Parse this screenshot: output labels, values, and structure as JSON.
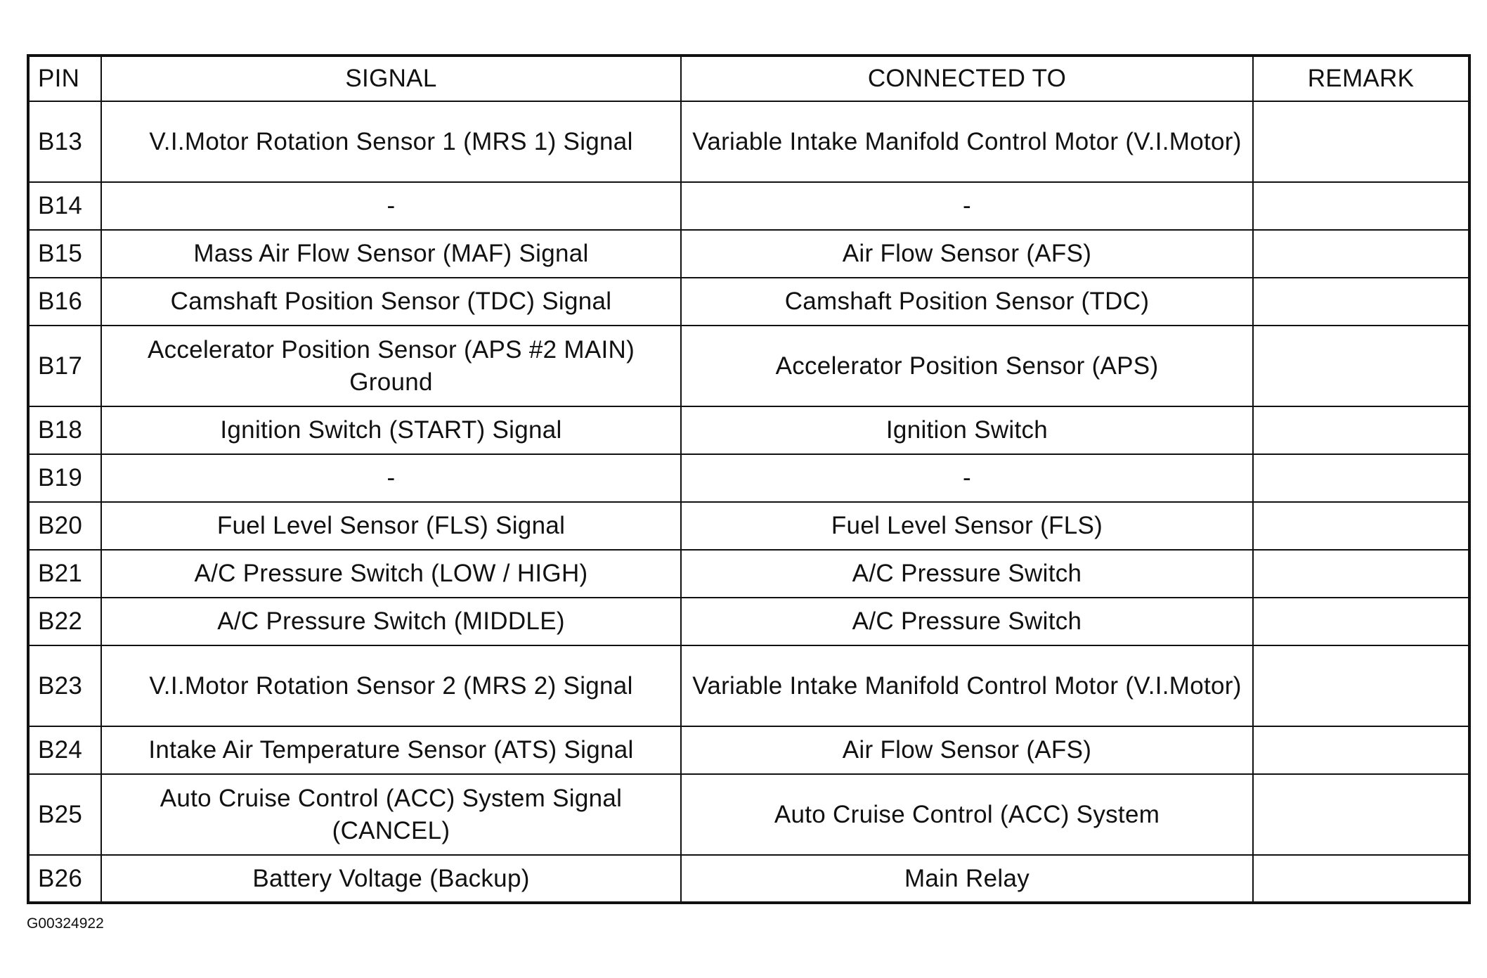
{
  "table": {
    "headers": [
      "PIN",
      "SIGNAL",
      "CONNECTED TO",
      "REMARK"
    ],
    "rows": [
      {
        "pin": "B13",
        "signal": "V.I.Motor Rotation Sensor 1 (MRS 1) Signal",
        "connected_to": "Variable Intake Manifold Control Motor (V.I.Motor)",
        "remark": "",
        "tall": true
      },
      {
        "pin": "B14",
        "signal": "-",
        "connected_to": "-",
        "remark": "",
        "tall": false
      },
      {
        "pin": "B15",
        "signal": "Mass Air Flow Sensor (MAF) Signal",
        "connected_to": "Air Flow Sensor (AFS)",
        "remark": "",
        "tall": false
      },
      {
        "pin": "B16",
        "signal": "Camshaft Position Sensor (TDC) Signal",
        "connected_to": "Camshaft Position Sensor (TDC)",
        "remark": "",
        "tall": false
      },
      {
        "pin": "B17",
        "signal": "Accelerator Position Sensor (APS #2 MAIN) Ground",
        "connected_to": "Accelerator Position Sensor (APS)",
        "remark": "",
        "tall": true
      },
      {
        "pin": "B18",
        "signal": "Ignition Switch (START) Signal",
        "connected_to": "Ignition Switch",
        "remark": "",
        "tall": false
      },
      {
        "pin": "B19",
        "signal": "-",
        "connected_to": "-",
        "remark": "",
        "tall": false
      },
      {
        "pin": "B20",
        "signal": "Fuel Level Sensor (FLS) Signal",
        "connected_to": "Fuel Level Sensor (FLS)",
        "remark": "",
        "tall": false
      },
      {
        "pin": "B21",
        "signal": "A/C Pressure Switch (LOW / HIGH)",
        "connected_to": "A/C Pressure Switch",
        "remark": "",
        "tall": false
      },
      {
        "pin": "B22",
        "signal": "A/C Pressure Switch (MIDDLE)",
        "connected_to": "A/C Pressure Switch",
        "remark": "",
        "tall": false
      },
      {
        "pin": "B23",
        "signal": "V.I.Motor Rotation Sensor 2 (MRS 2) Signal",
        "connected_to": "Variable Intake Manifold Control Motor (V.I.Motor)",
        "remark": "",
        "tall": true
      },
      {
        "pin": "B24",
        "signal": "Intake Air Temperature Sensor (ATS) Signal",
        "connected_to": "Air Flow Sensor (AFS)",
        "remark": "",
        "tall": false
      },
      {
        "pin": "B25",
        "signal": "Auto Cruise Control (ACC) System Signal (CANCEL)",
        "connected_to": "Auto Cruise Control (ACC) System",
        "remark": "",
        "tall": true
      },
      {
        "pin": "B26",
        "signal": "Battery Voltage (Backup)",
        "connected_to": "Main Relay",
        "remark": "",
        "tall": false
      }
    ]
  },
  "footer": {
    "figure_id": "G00324922"
  }
}
